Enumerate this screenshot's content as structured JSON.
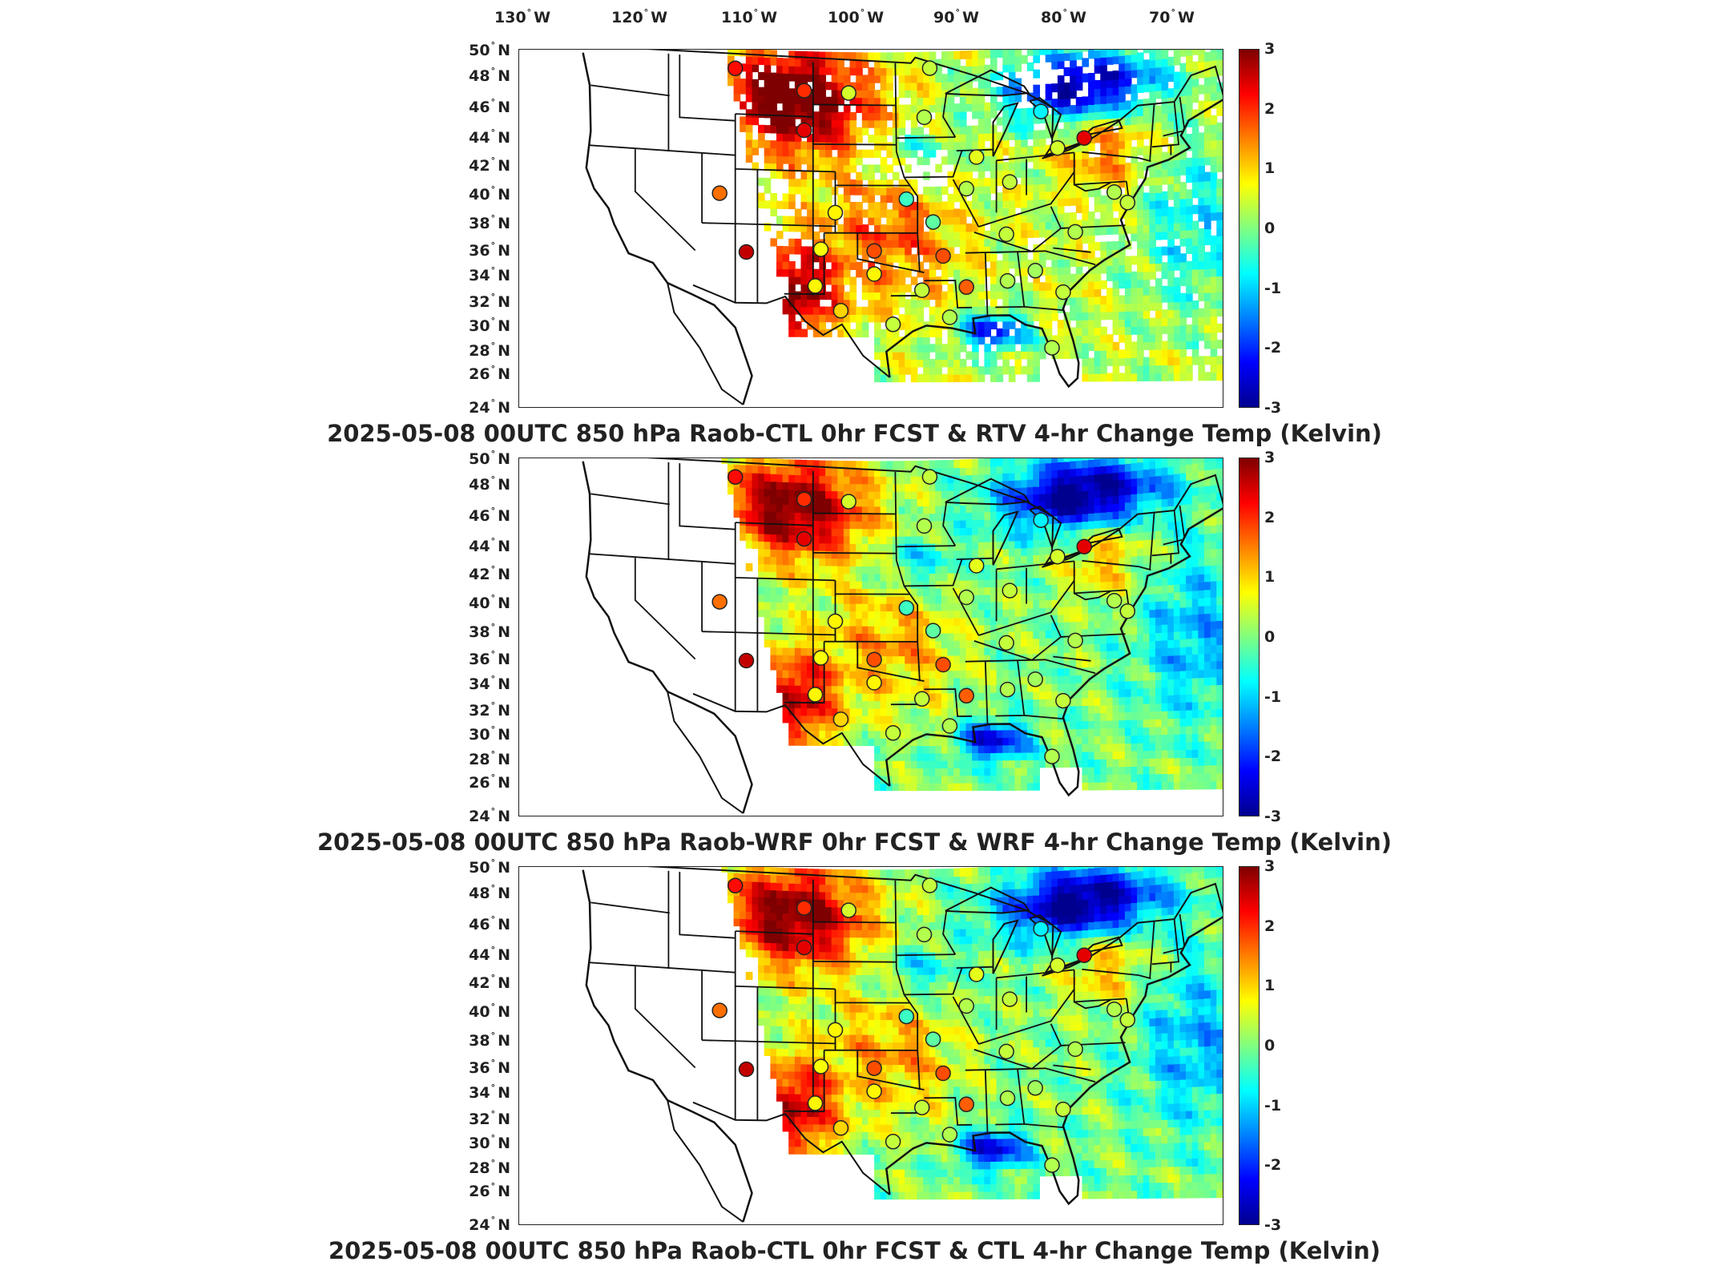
{
  "lon_labels": [
    "130",
    "120",
    "110",
    "100",
    "90",
    "80",
    "70"
  ],
  "lon_suffix": "W",
  "lat_labels": [
    "50",
    "48",
    "46",
    "44",
    "42",
    "40",
    "38",
    "36",
    "34",
    "32",
    "30",
    "28",
    "26",
    "24"
  ],
  "lat_suffix": "N",
  "colorbar": {
    "min": -3,
    "max": 3,
    "ticks": [
      "3",
      "2",
      "1",
      "0",
      "-1",
      "-2",
      "-3"
    ],
    "colors": [
      "#7f0000",
      "#ff0000",
      "#ff8000",
      "#ffff00",
      "#80ff80",
      "#00ffff",
      "#0080ff",
      "#0000ff",
      "#00008f"
    ]
  },
  "panels": [
    {
      "id": "rtv",
      "title": "2025-05-08 00UTC 850 hPa Raob-CTL 0hr FCST & RTV 4-hr Change Temp (Kelvin)",
      "coverage": "sparse"
    },
    {
      "id": "wrf",
      "title": "2025-05-08 00UTC 850 hPa Raob-WRF 0hr FCST & WRF 4-hr Change Temp (Kelvin)",
      "coverage": "full"
    },
    {
      "id": "ctl",
      "title": "2025-05-08 00UTC 850 hPa Raob-CTL 0hr FCST & CTL 4-hr Change Temp (Kelvin)",
      "coverage": "full"
    }
  ],
  "raob_stations": [
    {
      "lon": -111.0,
      "lat": 48.3,
      "v": 2.2
    },
    {
      "lon": -104.8,
      "lat": 46.9,
      "v": 2.0
    },
    {
      "lon": -100.8,
      "lat": 46.8,
      "v": 0.5
    },
    {
      "lon": -93.5,
      "lat": 48.6,
      "v": 0.4
    },
    {
      "lon": -104.8,
      "lat": 44.0,
      "v": 2.4
    },
    {
      "lon": -94.0,
      "lat": 45.0,
      "v": 0.3
    },
    {
      "lon": -83.5,
      "lat": 45.1,
      "v": -0.8
    },
    {
      "lon": -79.6,
      "lat": 43.0,
      "v": 2.4
    },
    {
      "lon": -89.3,
      "lat": 42.0,
      "v": 0.6
    },
    {
      "lon": -82.0,
      "lat": 42.4,
      "v": 0.5
    },
    {
      "lon": -86.3,
      "lat": 40.1,
      "v": 0.4
    },
    {
      "lon": -76.9,
      "lat": 39.0,
      "v": 0.3
    },
    {
      "lon": -112.4,
      "lat": 39.2,
      "v": 1.6
    },
    {
      "lon": -102.0,
      "lat": 38.0,
      "v": 0.8
    },
    {
      "lon": -95.6,
      "lat": 39.0,
      "v": -0.4
    },
    {
      "lon": -90.2,
      "lat": 39.7,
      "v": 0.3
    },
    {
      "lon": -93.2,
      "lat": 37.3,
      "v": -0.2
    },
    {
      "lon": -86.6,
      "lat": 36.3,
      "v": 0.4
    },
    {
      "lon": -80.4,
      "lat": 36.3,
      "v": 0.3
    },
    {
      "lon": -75.7,
      "lat": 38.2,
      "v": 0.4
    },
    {
      "lon": -110.0,
      "lat": 35.0,
      "v": 2.6
    },
    {
      "lon": -103.3,
      "lat": 35.3,
      "v": 0.7
    },
    {
      "lon": -98.5,
      "lat": 35.2,
      "v": 1.8
    },
    {
      "lon": -92.3,
      "lat": 34.8,
      "v": 1.8
    },
    {
      "lon": -98.5,
      "lat": 33.5,
      "v": 0.8
    },
    {
      "lon": -103.8,
      "lat": 32.6,
      "v": 0.8
    },
    {
      "lon": -94.2,
      "lat": 32.3,
      "v": 0.4
    },
    {
      "lon": -90.2,
      "lat": 32.5,
      "v": 1.7
    },
    {
      "lon": -86.5,
      "lat": 32.9,
      "v": 0.3
    },
    {
      "lon": -84.0,
      "lat": 33.6,
      "v": 0.2
    },
    {
      "lon": -81.5,
      "lat": 32.0,
      "v": 0.4
    },
    {
      "lon": -101.5,
      "lat": 30.8,
      "v": 1.0
    },
    {
      "lon": -96.8,
      "lat": 29.8,
      "v": 0.4
    },
    {
      "lon": -91.7,
      "lat": 30.3,
      "v": 0.3
    },
    {
      "lon": -82.5,
      "lat": 28.0,
      "v": 0.3
    }
  ]
}
